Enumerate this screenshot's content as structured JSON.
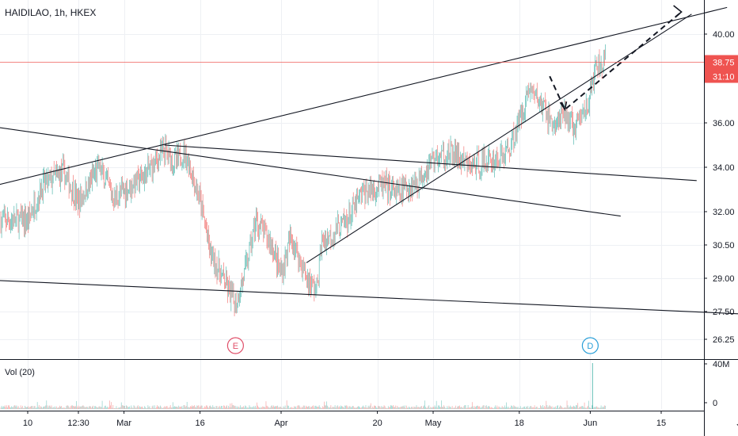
{
  "header": {
    "symbol": "HAIDILAO",
    "interval": "1h",
    "exchange": "HKEX",
    "title": "HAIDILAO, 1h, HKEX"
  },
  "volume_pane": {
    "label": "Vol (20)",
    "ticks": [
      "40M",
      "0"
    ]
  },
  "price_tag": {
    "price": "38.75",
    "countdown": "31:10"
  },
  "event_markers": [
    {
      "letter": "E",
      "date": "Mar 23",
      "color": "#e0506a"
    },
    {
      "letter": "D",
      "date": "Jun 1",
      "color": "#2a9fd8"
    }
  ],
  "chart_data": {
    "type": "candlestick",
    "title": "HAIDILAO, 1h, HKEX",
    "x_ticks": [
      "10",
      "12:30",
      "Mar",
      "16",
      "Apr",
      "20",
      "May",
      "18",
      "Jun",
      "15",
      "Jul"
    ],
    "y_ticks": [
      40.0,
      38.75,
      36.0,
      34.0,
      32.0,
      30.5,
      29.0,
      27.5,
      26.25
    ],
    "ylim": [
      25.8,
      41.5
    ],
    "last_price": 38.75,
    "colors": {
      "up": "#26a69a",
      "down": "#ef5350",
      "price_line": "#ef5350"
    },
    "price_path": [
      [
        "Feb 10",
        31.6
      ],
      [
        "Feb 13",
        33.2
      ],
      [
        "Feb 17",
        33.8
      ],
      [
        "Feb 20",
        32.4
      ],
      [
        "Feb 24",
        34.0
      ],
      [
        "Feb 27",
        32.6
      ],
      [
        "Mar 2",
        33.1
      ],
      [
        "Mar 5",
        33.6
      ],
      [
        "Mar 9",
        34.8
      ],
      [
        "Mar 11",
        34.2
      ],
      [
        "Mar 13",
        34.7
      ],
      [
        "Mar 16",
        32.5
      ],
      [
        "Mar 18",
        30.2
      ],
      [
        "Mar 20",
        29.2
      ],
      [
        "Mar 23",
        27.8
      ],
      [
        "Mar 25",
        29.4
      ],
      [
        "Mar 27",
        31.6
      ],
      [
        "Mar 30",
        30.6
      ],
      [
        "Apr 1",
        29.2
      ],
      [
        "Apr 3",
        30.9
      ],
      [
        "Apr 6",
        29.0
      ],
      [
        "Apr 8",
        28.5
      ],
      [
        "Apr 9",
        30.6
      ],
      [
        "Apr 14",
        31.6
      ],
      [
        "Apr 17",
        32.8
      ],
      [
        "Apr 21",
        33.2
      ],
      [
        "Apr 24",
        32.8
      ],
      [
        "Apr 28",
        33.4
      ],
      [
        "May 1",
        34.4
      ],
      [
        "May 5",
        34.6
      ],
      [
        "May 8",
        34.0
      ],
      [
        "May 12",
        34.3
      ],
      [
        "May 14",
        34.4
      ],
      [
        "May 16",
        34.8
      ],
      [
        "May 18",
        36.1
      ],
      [
        "May 20",
        37.6
      ],
      [
        "May 23",
        36.6
      ],
      [
        "May 25",
        35.8
      ],
      [
        "May 27",
        36.4
      ],
      [
        "May 29",
        35.7
      ],
      [
        "Jun 1",
        37.2
      ],
      [
        "Jun 2",
        38.4
      ],
      [
        "Jun 4",
        38.75
      ]
    ],
    "trend_lines": [
      {
        "from": [
          "Feb 4",
          33.2
        ],
        "to": [
          "Jun 28",
          41.2
        ]
      },
      {
        "from": [
          "Feb 4",
          35.8
        ],
        "to": [
          "Jun 7",
          31.8
        ]
      },
      {
        "from": [
          "Mar 9",
          35.0
        ],
        "to": [
          "Jun 22",
          33.4
        ]
      },
      {
        "from": [
          "Apr 6",
          29.7
        ],
        "to": [
          "Jun 21",
          40.9
        ]
      },
      {
        "from": [
          "Feb 4",
          28.9
        ],
        "to": [
          "Jul 10",
          27.3
        ]
      }
    ],
    "projection_path": [
      [
        "May 24",
        38.1
      ],
      [
        "May 27",
        36.6
      ],
      [
        "Jun 19",
        41.0
      ]
    ]
  }
}
